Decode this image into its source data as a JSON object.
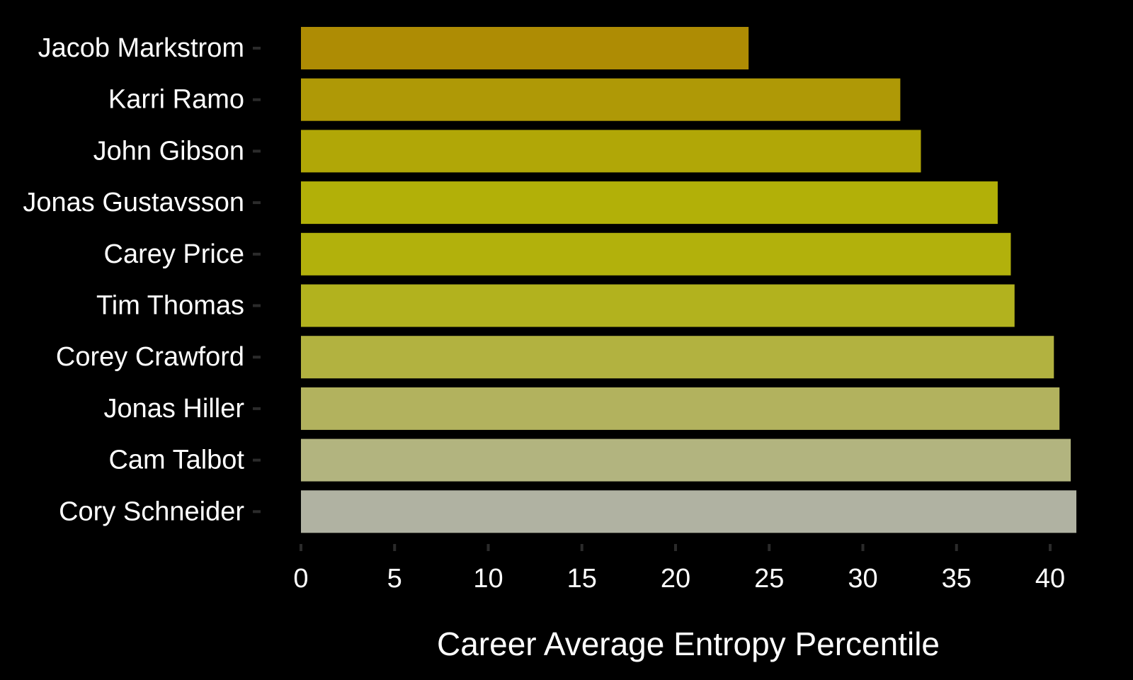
{
  "chart_data": {
    "type": "bar",
    "orientation": "horizontal",
    "categories": [
      "Jacob Markstrom",
      "Karri Ramo",
      "John Gibson",
      "Jonas Gustavsson",
      "Carey Price",
      "Tim Thomas",
      "Corey Crawford",
      "Jonas Hiller",
      "Cam Talbot",
      "Cory Schneider"
    ],
    "values": [
      23.9,
      32.0,
      33.1,
      37.2,
      37.9,
      38.1,
      40.2,
      40.5,
      41.1,
      41.4
    ],
    "colors": [
      "#ae8c04",
      "#af9906",
      "#b1a707",
      "#b2b008",
      "#b2b10c",
      "#b2b21e",
      "#b2b240",
      "#b2b25e",
      "#b2b47f",
      "#b0b2a2"
    ],
    "xlabel": "Career Average Entropy Percentile",
    "ylabel": "",
    "title": "",
    "xlim": [
      0,
      41.7
    ],
    "xticks": [
      0,
      5,
      10,
      15,
      20,
      25,
      30,
      35,
      40
    ],
    "grid": false,
    "legend": "none",
    "background": "#000000",
    "text_color": "#ffffff"
  }
}
